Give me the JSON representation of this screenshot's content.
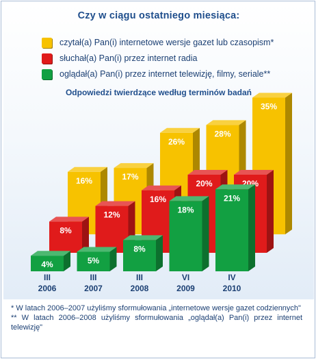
{
  "chart_data": {
    "type": "bar",
    "title": "Czy w ciągu ostatniego miesiąca:",
    "subtitle": "Odpowiedzi twierdzące według terminów badań",
    "categories": [
      {
        "period": "III",
        "year": "2006"
      },
      {
        "period": "III",
        "year": "2007"
      },
      {
        "period": "III",
        "year": "2008"
      },
      {
        "period": "VI",
        "year": "2009"
      },
      {
        "period": "IV",
        "year": "2010"
      }
    ],
    "series": [
      {
        "name": "czytał(a) Pan(i) internetowe wersje gazet lub czasopism*",
        "color": "#f7c200",
        "values": [
          16,
          17,
          26,
          28,
          35
        ]
      },
      {
        "name": "słuchał(a) Pan(i) przez internet radia",
        "color": "#e01b1b",
        "values": [
          8,
          12,
          16,
          20,
          20
        ]
      },
      {
        "name": "oglądał(a) Pan(i) przez internet telewizję, filmy, seriale**",
        "color": "#12a042",
        "values": [
          4,
          5,
          8,
          18,
          21
        ]
      }
    ],
    "unit": "%",
    "ylim": [
      0,
      35
    ],
    "grid": false,
    "legend_position": "top"
  },
  "footnotes": [
    "* W latach 2006–2007 użyliśmy sformułowania „internetowe wersje gazet codziennych\"",
    "** W latach 2006–2008 użyliśmy sformułowania „oglądał(a) Pan(i) przez internet telewizję\""
  ]
}
